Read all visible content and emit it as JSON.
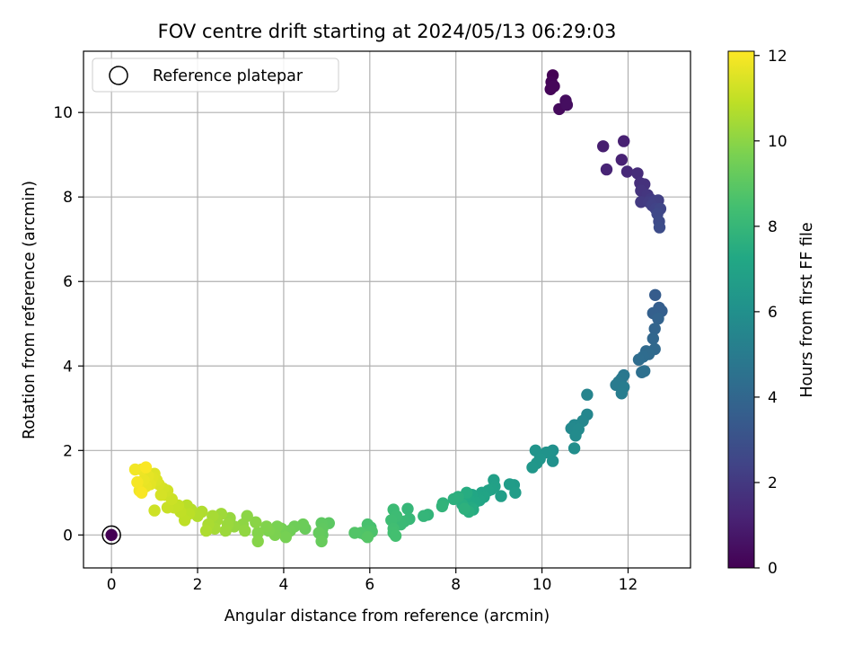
{
  "chart_data": {
    "type": "scatter",
    "title": "FOV centre drift starting at 2024/05/13 06:29:03",
    "xlabel": "Angular distance from reference (arcmin)",
    "ylabel": "Rotation from reference (arcmin)",
    "xlim": [
      -0.65,
      13.45
    ],
    "ylim": [
      -0.78,
      11.45
    ],
    "xticks": [
      0,
      2,
      4,
      6,
      8,
      10,
      12
    ],
    "yticks": [
      0,
      2,
      4,
      6,
      8,
      10
    ],
    "grid": true,
    "colorbar": {
      "label": "Hours from first FF file",
      "colormap": "viridis",
      "range": [
        0,
        12.1
      ],
      "ticks": [
        0,
        2,
        4,
        6,
        8,
        10,
        12
      ]
    },
    "legend": {
      "location": "upper left",
      "entries": [
        "Reference platepar"
      ]
    },
    "reference_point": {
      "x": 0,
      "y": 0,
      "hours": 0
    },
    "points": [
      [
        10.25,
        10.88,
        0.0
      ],
      [
        10.22,
        10.72,
        0.1
      ],
      [
        10.2,
        10.55,
        0.15
      ],
      [
        10.28,
        10.62,
        0.2
      ],
      [
        10.4,
        10.08,
        0.3
      ],
      [
        10.55,
        10.28,
        0.4
      ],
      [
        10.58,
        10.18,
        0.45
      ],
      [
        11.42,
        9.2,
        1.0
      ],
      [
        11.9,
        9.32,
        1.1
      ],
      [
        11.85,
        8.88,
        1.15
      ],
      [
        11.5,
        8.65,
        1.2
      ],
      [
        11.98,
        8.6,
        1.4
      ],
      [
        12.22,
        8.56,
        1.5
      ],
      [
        12.28,
        8.33,
        1.6
      ],
      [
        12.38,
        8.3,
        1.7
      ],
      [
        12.3,
        8.15,
        1.8
      ],
      [
        12.45,
        8.05,
        1.9
      ],
      [
        12.52,
        7.95,
        2.0
      ],
      [
        12.3,
        7.88,
        2.05
      ],
      [
        12.48,
        7.88,
        2.1
      ],
      [
        12.6,
        7.9,
        2.2
      ],
      [
        12.7,
        7.92,
        2.25
      ],
      [
        12.56,
        7.8,
        2.3
      ],
      [
        12.64,
        7.72,
        2.4
      ],
      [
        12.75,
        7.72,
        2.5
      ],
      [
        12.68,
        7.6,
        2.6
      ],
      [
        12.72,
        7.42,
        2.7
      ],
      [
        12.73,
        7.28,
        2.8
      ],
      [
        12.63,
        5.68,
        3.5
      ],
      [
        12.72,
        5.38,
        3.6
      ],
      [
        12.78,
        5.3,
        3.65
      ],
      [
        12.58,
        5.25,
        3.7
      ],
      [
        12.7,
        5.12,
        3.8
      ],
      [
        12.62,
        4.88,
        3.9
      ],
      [
        12.58,
        4.65,
        4.0
      ],
      [
        12.62,
        4.4,
        4.1
      ],
      [
        12.42,
        4.35,
        4.15
      ],
      [
        12.48,
        4.28,
        4.2
      ],
      [
        12.35,
        4.22,
        4.25
      ],
      [
        12.25,
        4.15,
        4.3
      ],
      [
        12.32,
        3.85,
        4.4
      ],
      [
        12.38,
        3.88,
        4.45
      ],
      [
        11.9,
        3.78,
        4.8
      ],
      [
        11.85,
        3.7,
        4.85
      ],
      [
        11.78,
        3.62,
        4.9
      ],
      [
        11.72,
        3.55,
        5.0
      ],
      [
        11.9,
        3.5,
        5.05
      ],
      [
        11.85,
        3.35,
        5.1
      ],
      [
        11.05,
        3.32,
        5.4
      ],
      [
        11.05,
        2.85,
        5.5
      ],
      [
        10.95,
        2.7,
        5.55
      ],
      [
        10.75,
        2.6,
        5.6
      ],
      [
        10.68,
        2.52,
        5.65
      ],
      [
        10.85,
        2.5,
        5.7
      ],
      [
        10.78,
        2.35,
        5.75
      ],
      [
        10.75,
        2.05,
        5.9
      ],
      [
        10.25,
        2.0,
        6.0
      ],
      [
        10.25,
        1.75,
        6.05
      ],
      [
        10.18,
        1.95,
        6.1
      ],
      [
        10.1,
        1.95,
        6.15
      ],
      [
        9.85,
        2.0,
        6.2
      ],
      [
        9.95,
        1.8,
        6.25
      ],
      [
        9.88,
        1.7,
        6.3
      ],
      [
        9.78,
        1.6,
        6.35
      ],
      [
        9.35,
        1.18,
        6.6
      ],
      [
        9.25,
        1.2,
        6.65
      ],
      [
        9.38,
        1.0,
        6.7
      ],
      [
        9.05,
        0.92,
        6.75
      ],
      [
        8.88,
        1.3,
        6.8
      ],
      [
        8.9,
        1.15,
        6.85
      ],
      [
        8.82,
        1.08,
        6.9
      ],
      [
        8.75,
        1.05,
        6.95
      ],
      [
        8.6,
        1.0,
        7.0
      ],
      [
        8.65,
        0.9,
        7.05
      ],
      [
        8.55,
        0.82,
        7.1
      ],
      [
        8.38,
        0.95,
        7.15
      ],
      [
        8.45,
        0.78,
        7.2
      ],
      [
        8.3,
        0.85,
        7.25
      ],
      [
        8.25,
        0.92,
        7.3
      ],
      [
        8.35,
        0.65,
        7.35
      ],
      [
        8.4,
        0.6,
        7.4
      ],
      [
        8.25,
        1.0,
        7.45
      ],
      [
        8.15,
        0.72,
        7.5
      ],
      [
        8.3,
        0.55,
        7.55
      ],
      [
        8.05,
        0.9,
        7.6
      ],
      [
        7.95,
        0.85,
        7.65
      ],
      [
        8.2,
        0.62,
        7.7
      ],
      [
        7.7,
        0.75,
        7.8
      ],
      [
        7.68,
        0.68,
        7.85
      ],
      [
        7.35,
        0.48,
        7.9
      ],
      [
        7.25,
        0.45,
        7.95
      ],
      [
        6.88,
        0.62,
        8.0
      ],
      [
        6.92,
        0.38,
        8.05
      ],
      [
        6.8,
        0.32,
        8.1
      ],
      [
        6.72,
        0.25,
        8.15
      ],
      [
        6.55,
        0.6,
        8.2
      ],
      [
        6.62,
        0.45,
        8.25
      ],
      [
        6.5,
        0.35,
        8.3
      ],
      [
        6.55,
        0.15,
        8.35
      ],
      [
        6.55,
        0.05,
        8.4
      ],
      [
        6.6,
        -0.02,
        8.45
      ],
      [
        6.02,
        0.18,
        8.5
      ],
      [
        5.95,
        0.25,
        8.55
      ],
      [
        5.95,
        0.1,
        8.6
      ],
      [
        6.05,
        0.08,
        8.65
      ],
      [
        5.9,
        0.0,
        8.7
      ],
      [
        5.8,
        0.05,
        8.75
      ],
      [
        5.65,
        0.05,
        8.8
      ],
      [
        5.95,
        -0.05,
        8.85
      ],
      [
        5.05,
        0.28,
        9.0
      ],
      [
        4.88,
        0.28,
        9.05
      ],
      [
        4.9,
        0.15,
        9.1
      ],
      [
        4.9,
        0.0,
        9.15
      ],
      [
        4.82,
        0.05,
        9.2
      ],
      [
        4.88,
        -0.15,
        9.25
      ],
      [
        4.5,
        0.15,
        9.3
      ],
      [
        4.45,
        0.25,
        9.35
      ],
      [
        4.25,
        0.2,
        9.4
      ],
      [
        4.15,
        0.1,
        9.45
      ],
      [
        4.05,
        0.05,
        9.5
      ],
      [
        3.95,
        0.15,
        9.55
      ],
      [
        4.05,
        -0.05,
        9.6
      ],
      [
        3.85,
        0.2,
        9.65
      ],
      [
        3.8,
        0.0,
        9.7
      ],
      [
        3.65,
        0.1,
        9.75
      ],
      [
        3.6,
        0.2,
        9.8
      ],
      [
        3.4,
        0.05,
        9.85
      ],
      [
        3.4,
        -0.15,
        9.9
      ],
      [
        3.35,
        0.3,
        9.95
      ],
      [
        3.15,
        0.45,
        10.0
      ],
      [
        3.05,
        0.25,
        10.05
      ],
      [
        3.1,
        0.1,
        10.1
      ],
      [
        2.85,
        0.2,
        10.15
      ],
      [
        2.75,
        0.4,
        10.2
      ],
      [
        2.7,
        0.25,
        10.25
      ],
      [
        2.65,
        0.1,
        10.3
      ],
      [
        2.55,
        0.5,
        10.35
      ],
      [
        2.45,
        0.35,
        10.4
      ],
      [
        2.4,
        0.15,
        10.45
      ],
      [
        2.35,
        0.45,
        10.5
      ],
      [
        2.25,
        0.25,
        10.55
      ],
      [
        2.2,
        0.1,
        10.6
      ],
      [
        2.1,
        0.55,
        10.65
      ],
      [
        2.0,
        0.45,
        10.7
      ],
      [
        1.85,
        0.6,
        10.75
      ],
      [
        1.75,
        0.7,
        10.8
      ],
      [
        1.8,
        0.5,
        10.85
      ],
      [
        1.7,
        0.35,
        10.9
      ],
      [
        1.6,
        0.55,
        10.95
      ],
      [
        1.55,
        0.7,
        11.0
      ],
      [
        1.45,
        0.65,
        11.05
      ],
      [
        1.3,
        0.65,
        11.1
      ],
      [
        1.4,
        0.85,
        11.15
      ],
      [
        1.25,
        0.95,
        11.2
      ],
      [
        1.3,
        1.05,
        11.25
      ],
      [
        1.2,
        1.1,
        11.3
      ],
      [
        1.15,
        0.95,
        11.35
      ],
      [
        1.1,
        1.2,
        11.4
      ],
      [
        1.05,
        1.3,
        11.45
      ],
      [
        1.0,
        1.45,
        11.5
      ],
      [
        0.95,
        1.35,
        11.55
      ],
      [
        0.9,
        1.2,
        11.6
      ],
      [
        0.85,
        1.4,
        11.65
      ],
      [
        0.8,
        1.15,
        11.7
      ],
      [
        0.75,
        1.3,
        11.75
      ],
      [
        0.7,
        1.55,
        11.8
      ],
      [
        0.65,
        1.05,
        11.85
      ],
      [
        0.55,
        1.55,
        11.9
      ],
      [
        0.6,
        1.25,
        11.95
      ],
      [
        0.7,
        1.0,
        12.0
      ],
      [
        0.8,
        1.6,
        12.05
      ],
      [
        1.0,
        0.58,
        11.2
      ]
    ]
  }
}
